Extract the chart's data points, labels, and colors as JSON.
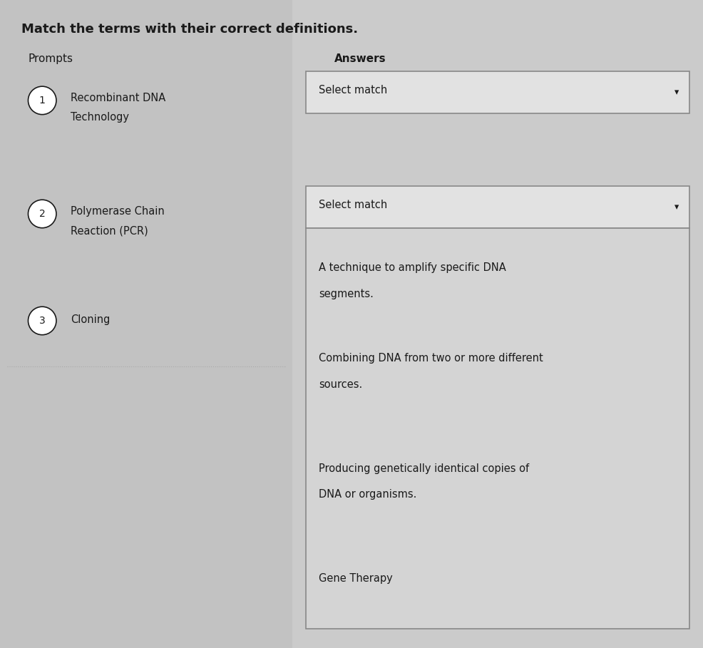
{
  "title": "Match the terms with their correct definitions.",
  "prompts_label": "Prompts",
  "answers_label": "Answers",
  "background_color": "#c8c8c8",
  "left_panel_color": "#c2c2c2",
  "right_panel_bg": "#cbcbcb",
  "dropdown_bg": "#e2e2e2",
  "dropdown_border": "#888888",
  "open_box_bg": "#d4d4d4",
  "open_box_border": "#888888",
  "text_color": "#1a1a1a",
  "circle_bg": "#ffffff",
  "divider_color": "#aaaaaa",
  "prompts": [
    {
      "num": "1",
      "lines": [
        "Recombinant DNA",
        "Technology"
      ]
    },
    {
      "num": "2",
      "lines": [
        "Polymerase Chain",
        "Reaction (PCR)"
      ]
    },
    {
      "num": "3",
      "lines": [
        "Cloning"
      ]
    }
  ],
  "answer_items": [
    "A technique to amplify specific DNA\nsegments.",
    "Combining DNA from two or more different\nsources.",
    "Producing genetically identical copies of\nDNA or organisms.",
    "Gene Therapy"
  ],
  "col_divider": 0.415,
  "font_size_title": 13,
  "font_size_labels": 11,
  "font_size_prompts": 10.5,
  "font_size_answers": 10.5,
  "font_size_circle": 10
}
